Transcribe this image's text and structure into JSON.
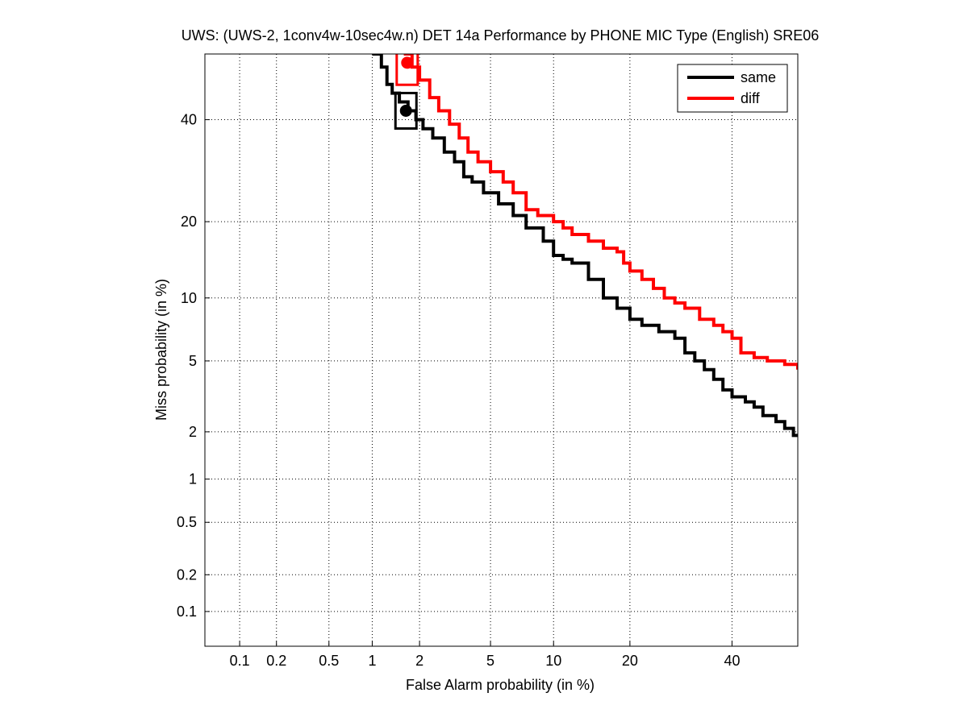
{
  "chart_data": {
    "type": "line",
    "title": "UWS: (UWS-2, 1conv4w-10sec4w.n) DET 14a Performance by PHONE MIC Type (English) SRE06",
    "xlabel": "False Alarm probability (in %)",
    "ylabel": "Miss probability (in %)",
    "x_scale": "normal-deviate",
    "y_scale": "normal-deviate",
    "xlim": [
      0.05,
      55
    ],
    "ylim": [
      0.05,
      55
    ],
    "grid": true,
    "legend_position": "top-right",
    "x_ticks": [
      0.1,
      0.2,
      0.5,
      1,
      2,
      5,
      10,
      20,
      40
    ],
    "x_tick_labels": [
      "0.1",
      "0.2",
      "0.5",
      "1",
      "2",
      "5",
      "10",
      "20",
      "40"
    ],
    "y_ticks": [
      0.1,
      0.2,
      0.5,
      1,
      2,
      5,
      10,
      20,
      40
    ],
    "y_tick_labels": [
      "0.1",
      "0.2",
      "0.5",
      "1",
      "2",
      "5",
      "10",
      "20",
      "40"
    ],
    "series": [
      {
        "name": "same",
        "color": "#000000",
        "points": [
          [
            1.0,
            55
          ],
          [
            1.15,
            52
          ],
          [
            1.25,
            48
          ],
          [
            1.35,
            46
          ],
          [
            1.5,
            44
          ],
          [
            1.7,
            42
          ],
          [
            1.9,
            40
          ],
          [
            2.1,
            38
          ],
          [
            2.4,
            36
          ],
          [
            2.8,
            33
          ],
          [
            3.2,
            31
          ],
          [
            3.6,
            28
          ],
          [
            4.0,
            27
          ],
          [
            4.6,
            25
          ],
          [
            5.5,
            23
          ],
          [
            6.5,
            21
          ],
          [
            7.5,
            19
          ],
          [
            9.0,
            17
          ],
          [
            10,
            15
          ],
          [
            11,
            14.5
          ],
          [
            12,
            14
          ],
          [
            14,
            12
          ],
          [
            16,
            10
          ],
          [
            18,
            9
          ],
          [
            20,
            8
          ],
          [
            22,
            7.5
          ],
          [
            25,
            7
          ],
          [
            28,
            6.5
          ],
          [
            30,
            5.5
          ],
          [
            32,
            5
          ],
          [
            34,
            4.5
          ],
          [
            36,
            4
          ],
          [
            38,
            3.5
          ],
          [
            40,
            3.2
          ],
          [
            43,
            3
          ],
          [
            45,
            2.8
          ],
          [
            47,
            2.5
          ],
          [
            50,
            2.3
          ],
          [
            52,
            2.1
          ],
          [
            54,
            1.9
          ],
          [
            55,
            1.9
          ]
        ],
        "min_dcf_point": [
          1.65,
          42
        ],
        "act_dcf_box": [
          1.65,
          42
        ]
      },
      {
        "name": "diff",
        "color": "#ff0000",
        "points": [
          [
            1.6,
            55
          ],
          [
            1.8,
            52
          ],
          [
            2.0,
            49
          ],
          [
            2.3,
            45
          ],
          [
            2.6,
            42
          ],
          [
            3.0,
            39
          ],
          [
            3.4,
            36
          ],
          [
            3.8,
            33
          ],
          [
            4.3,
            31
          ],
          [
            5.0,
            29
          ],
          [
            5.8,
            27
          ],
          [
            6.5,
            25
          ],
          [
            7.5,
            22
          ],
          [
            8.5,
            21
          ],
          [
            10,
            20
          ],
          [
            11,
            19
          ],
          [
            12,
            18
          ],
          [
            14,
            17
          ],
          [
            16,
            16
          ],
          [
            18,
            15.5
          ],
          [
            19,
            14
          ],
          [
            20,
            13
          ],
          [
            22,
            12
          ],
          [
            24,
            11
          ],
          [
            26,
            10
          ],
          [
            28,
            9.5
          ],
          [
            30,
            9
          ],
          [
            33,
            8
          ],
          [
            36,
            7.5
          ],
          [
            38,
            7
          ],
          [
            40,
            6.5
          ],
          [
            42,
            5.5
          ],
          [
            45,
            5.2
          ],
          [
            48,
            5
          ],
          [
            52,
            4.8
          ],
          [
            55,
            4.5
          ]
        ],
        "min_dcf_point": [
          1.68,
          53
        ],
        "act_dcf_box": [
          1.68,
          52
        ]
      }
    ]
  }
}
